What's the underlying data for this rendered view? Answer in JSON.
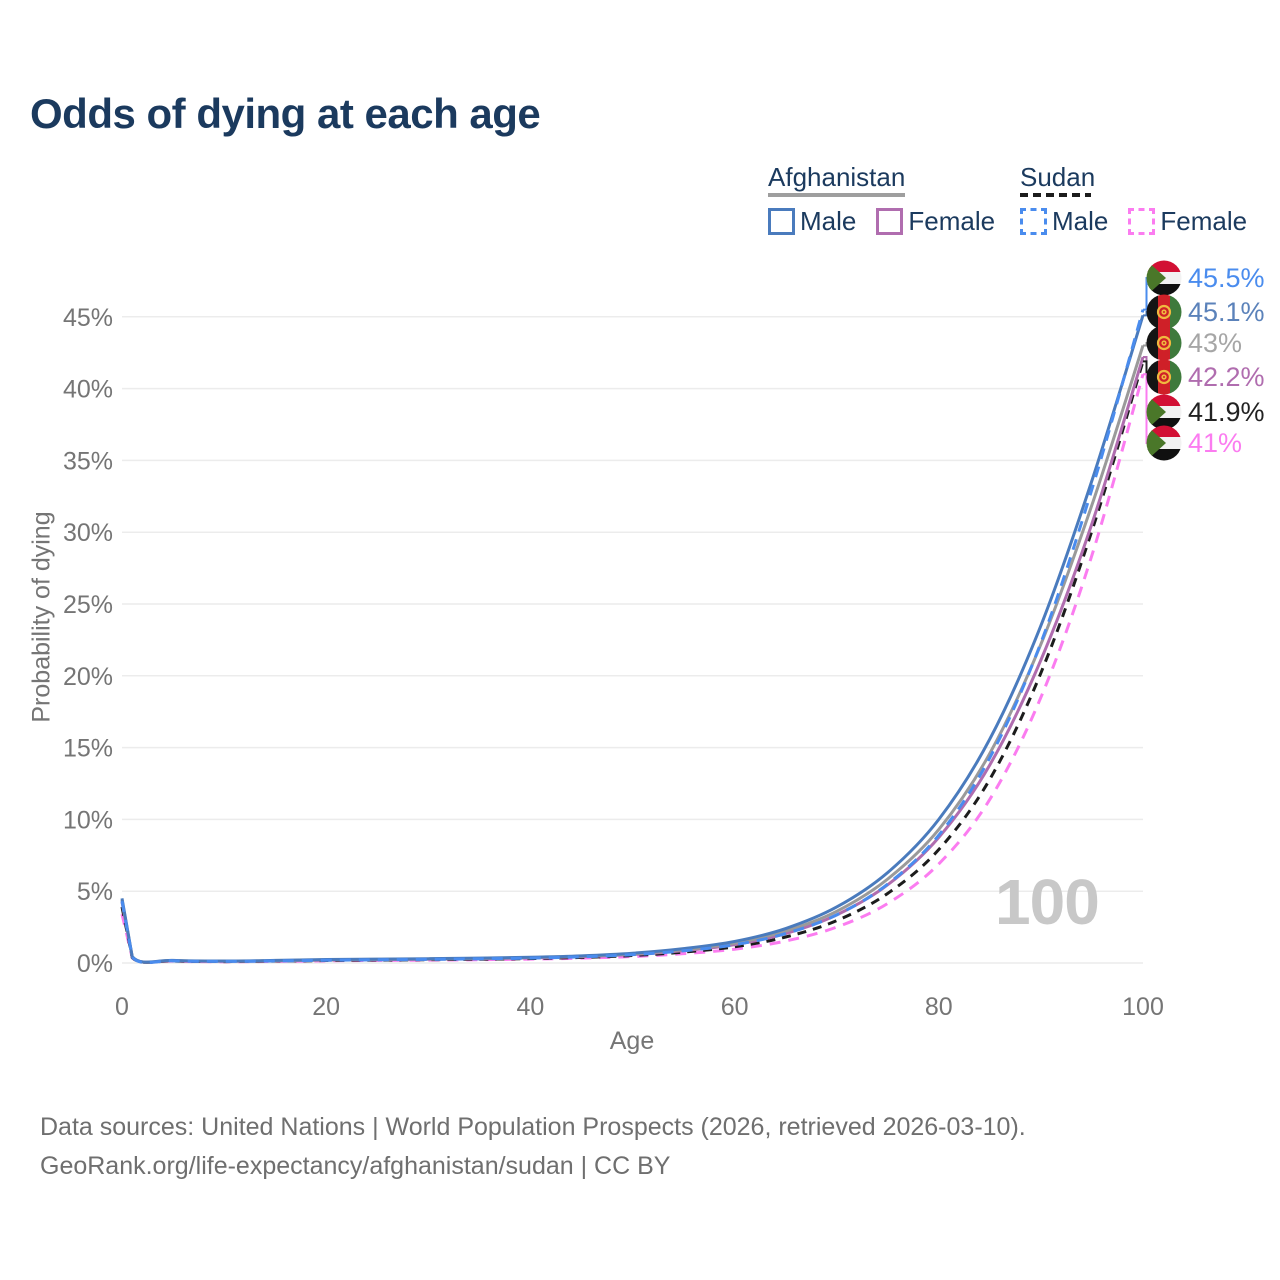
{
  "title": "Odds of dying at each age",
  "watermark": "100",
  "legend": {
    "groups": [
      {
        "label": "Afghanistan",
        "line_style": "solid",
        "underline_color": "#9e9e9e",
        "items": [
          {
            "label": "Male",
            "color": "#4a7bbd",
            "dashed": false
          },
          {
            "label": "Female",
            "color": "#b06daf",
            "dashed": false
          }
        ]
      },
      {
        "label": "Sudan",
        "line_style": "dashed",
        "underline_color": "#1c1c1c",
        "items": [
          {
            "label": "Male",
            "color": "#4a8cee",
            "dashed": true
          },
          {
            "label": "Female",
            "color": "#fb7cf0",
            "dashed": true
          }
        ]
      }
    ]
  },
  "chart_data": {
    "type": "line",
    "title": "Odds of dying at each age",
    "xlabel": "Age",
    "ylabel": "Probability of dying",
    "xlim": [
      0,
      100
    ],
    "ylim": [
      0,
      47
    ],
    "x_ticks": [
      0,
      20,
      40,
      60,
      80,
      100
    ],
    "y_ticks": [
      0,
      5,
      10,
      15,
      20,
      25,
      30,
      35,
      40,
      45
    ],
    "y_tick_suffix": "%",
    "grid": "horizontal",
    "legend_position": "top-right",
    "hover_age": "100",
    "ages": [
      0,
      1,
      5,
      10,
      15,
      20,
      25,
      30,
      35,
      40,
      45,
      50,
      55,
      60,
      65,
      70,
      75,
      80,
      85,
      90,
      95,
      100
    ],
    "series": [
      {
        "name": "Sudan Male",
        "country": "Sudan",
        "sex": "Male",
        "flag": "sudan",
        "color": "#4a8cee",
        "dashed": true,
        "end_label": "45.5%",
        "label_color": "#4a8cee",
        "values": [
          4.3,
          0.4,
          0.15,
          0.11,
          0.14,
          0.19,
          0.22,
          0.25,
          0.29,
          0.34,
          0.43,
          0.58,
          0.85,
          1.27,
          2.05,
          3.35,
          5.5,
          8.9,
          14.3,
          22.3,
          33.0,
          45.5
        ]
      },
      {
        "name": "Afghanistan Male",
        "country": "Afghanistan",
        "sex": "Male",
        "flag": "afghanistan",
        "color": "#4a7bbd",
        "dashed": false,
        "end_label": "45.1%",
        "label_color": "#5b82ba",
        "values": [
          4.5,
          0.45,
          0.18,
          0.14,
          0.18,
          0.24,
          0.27,
          0.3,
          0.34,
          0.4,
          0.5,
          0.68,
          1.0,
          1.5,
          2.4,
          3.9,
          6.3,
          10.0,
          15.6,
          23.5,
          33.6,
          45.1
        ]
      },
      {
        "name": "Afghanistan",
        "country": "Afghanistan",
        "sex": "Both",
        "flag": "afghanistan",
        "color": "#9a9a9a",
        "dashed": false,
        "end_label": "43%",
        "label_color": "#a6a6a6",
        "values": [
          4.4,
          0.43,
          0.17,
          0.13,
          0.16,
          0.22,
          0.25,
          0.28,
          0.32,
          0.37,
          0.47,
          0.63,
          0.92,
          1.38,
          2.22,
          3.6,
          5.85,
          9.3,
          14.6,
          22.2,
          31.9,
          43.0
        ]
      },
      {
        "name": "Afghanistan Female",
        "country": "Afghanistan",
        "sex": "Female",
        "flag": "afghanistan",
        "color": "#b06daf",
        "dashed": false,
        "end_label": "42.2%",
        "label_color": "#b06daf",
        "values": [
          4.25,
          0.42,
          0.16,
          0.12,
          0.15,
          0.2,
          0.23,
          0.26,
          0.3,
          0.35,
          0.44,
          0.59,
          0.86,
          1.28,
          2.05,
          3.35,
          5.45,
          8.75,
          13.8,
          21.1,
          30.6,
          42.2
        ]
      },
      {
        "name": "Sudan",
        "country": "Sudan",
        "sex": "Both",
        "flag": "sudan",
        "color": "#1c1c1c",
        "dashed": true,
        "end_label": "41.9%",
        "label_color": "#222222",
        "values": [
          3.9,
          0.38,
          0.14,
          0.1,
          0.13,
          0.17,
          0.2,
          0.23,
          0.26,
          0.31,
          0.39,
          0.52,
          0.76,
          1.13,
          1.81,
          2.95,
          4.85,
          7.9,
          12.8,
          20.2,
          30.1,
          41.9
        ]
      },
      {
        "name": "Sudan Female",
        "country": "Sudan",
        "sex": "Female",
        "flag": "sudan",
        "color": "#fb7cf0",
        "dashed": true,
        "end_label": "41%",
        "label_color": "#fb7cf0",
        "values": [
          3.4,
          0.36,
          0.13,
          0.09,
          0.11,
          0.15,
          0.18,
          0.2,
          0.23,
          0.27,
          0.34,
          0.45,
          0.65,
          0.96,
          1.53,
          2.5,
          4.15,
          6.9,
          11.4,
          18.5,
          28.4,
          41.0
        ]
      }
    ]
  },
  "footer": {
    "line1": "Data sources: United Nations | World Population Prospects (2026, retrieved 2026-03-10).",
    "line2": "GeoRank.org/life-expectancy/afghanistan/sudan | CC BY"
  },
  "colors": {
    "title": "#1b3a5e",
    "axis_text": "#757575",
    "grid": "#ececec",
    "watermark": "#c8c8c8",
    "footer_text": "#6f6f6f"
  }
}
